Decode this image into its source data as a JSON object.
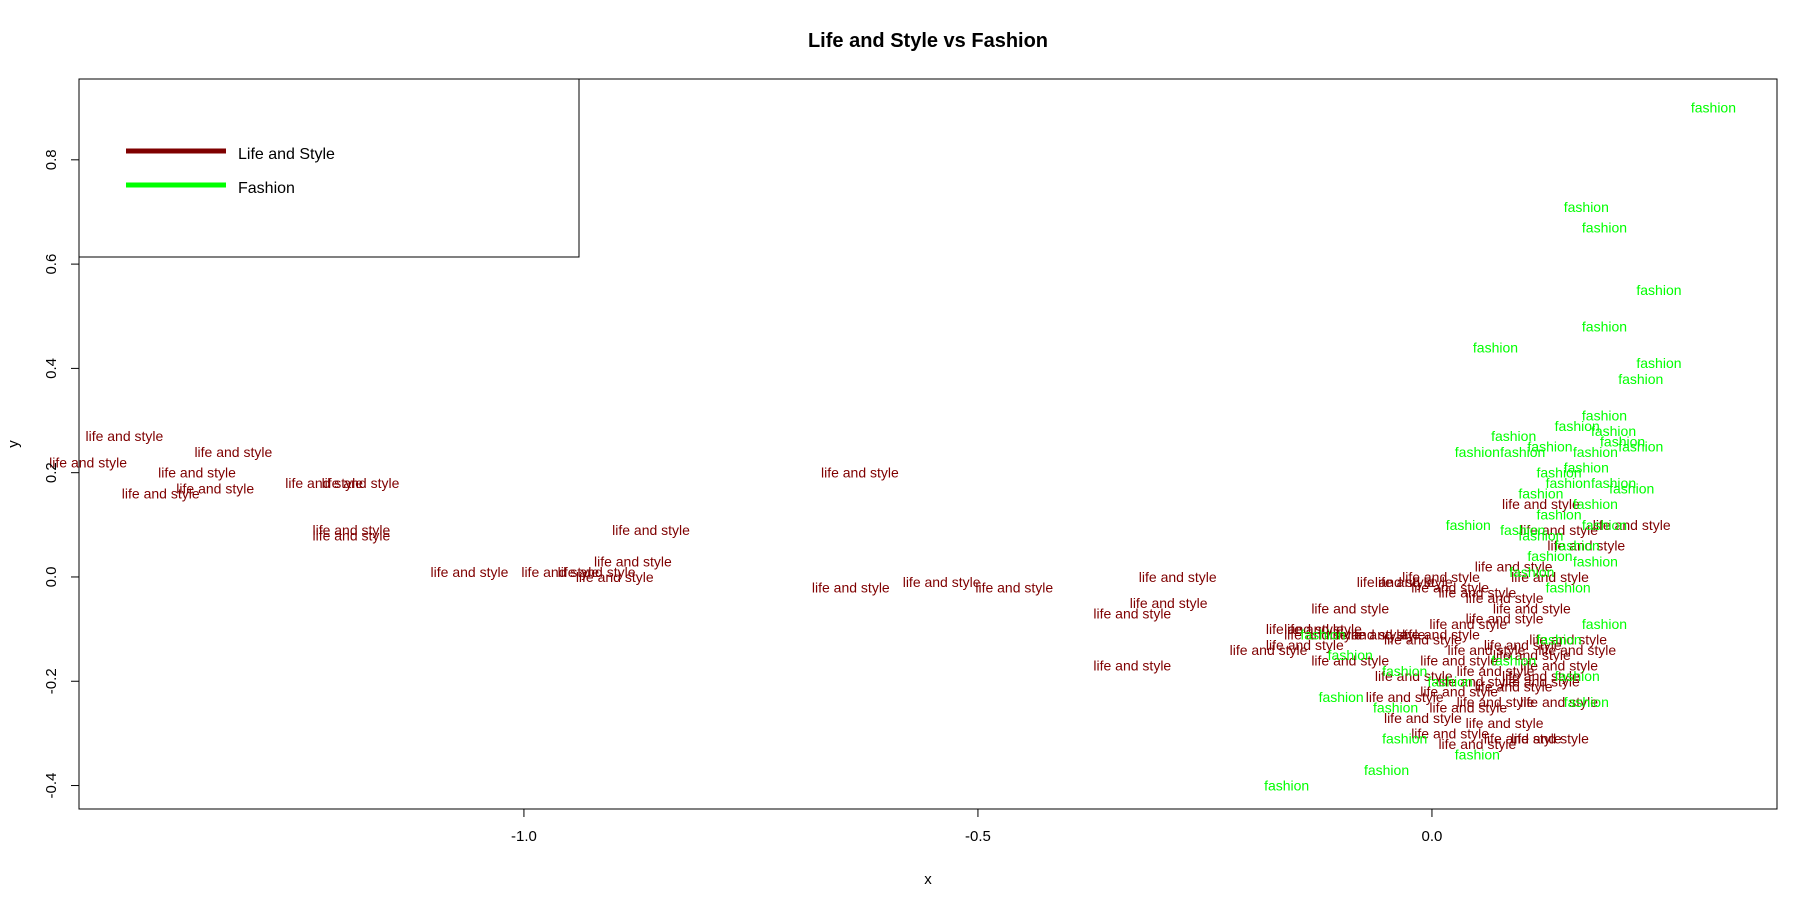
{
  "chart_data": {
    "type": "scatter",
    "title": "Life and Style vs Fashion",
    "xlabel": "x",
    "ylabel": "y",
    "xlim": [
      -1.49,
      0.38
    ],
    "ylim": [
      -0.445,
      0.955
    ],
    "xticks": [
      "-1.0",
      "-0.5",
      "0.0"
    ],
    "xtick_values": [
      -1.0,
      -0.5,
      0.0
    ],
    "yticks": [
      "-0.4",
      "-0.2",
      "0.0",
      "0.2",
      "0.4",
      "0.6",
      "0.8"
    ],
    "ytick_values": [
      -0.4,
      -0.2,
      0.0,
      0.2,
      0.4,
      0.6,
      0.8
    ],
    "grid": false,
    "legend_position": "top-left",
    "legend": [
      {
        "name": "Life and Style",
        "color": "#7f0000"
      },
      {
        "name": "Fashion",
        "color": "#00ff00"
      }
    ],
    "series": [
      {
        "name": "Life and Style",
        "point_label": "life and style",
        "color": "#7f0000",
        "points": [
          [
            -1.44,
            0.27
          ],
          [
            -1.48,
            0.22
          ],
          [
            -1.32,
            0.24
          ],
          [
            -1.36,
            0.2
          ],
          [
            -1.34,
            0.17
          ],
          [
            -1.4,
            0.16
          ],
          [
            -1.22,
            0.18
          ],
          [
            -1.18,
            0.18
          ],
          [
            -1.19,
            0.09
          ],
          [
            -1.19,
            0.08
          ],
          [
            -1.06,
            0.01
          ],
          [
            -0.96,
            0.01
          ],
          [
            -0.92,
            0.01
          ],
          [
            -0.9,
            0.0
          ],
          [
            -0.88,
            0.03
          ],
          [
            -0.86,
            0.09
          ],
          [
            -0.63,
            0.2
          ],
          [
            -0.64,
            -0.02
          ],
          [
            -0.54,
            -0.01
          ],
          [
            -0.46,
            -0.02
          ],
          [
            -0.28,
            0.0
          ],
          [
            -0.29,
            -0.05
          ],
          [
            -0.33,
            -0.07
          ],
          [
            -0.33,
            -0.17
          ],
          [
            -0.18,
            -0.14
          ],
          [
            -0.14,
            -0.13
          ],
          [
            -0.12,
            -0.11
          ],
          [
            -0.09,
            -0.06
          ],
          [
            -0.12,
            -0.1
          ],
          [
            -0.09,
            -0.16
          ],
          [
            -0.14,
            -0.1
          ],
          [
            -0.02,
            -0.01
          ],
          [
            -0.04,
            -0.01
          ],
          [
            0.01,
            0.0
          ],
          [
            0.02,
            -0.02
          ],
          [
            0.05,
            -0.03
          ],
          [
            0.08,
            -0.04
          ],
          [
            0.12,
            0.14
          ],
          [
            0.14,
            0.09
          ],
          [
            0.22,
            0.1
          ],
          [
            0.17,
            0.06
          ],
          [
            0.13,
            0.0
          ],
          [
            0.09,
            0.02
          ],
          [
            0.11,
            -0.06
          ],
          [
            -0.05,
            -0.11
          ],
          [
            -0.02,
            -0.19
          ],
          [
            -0.03,
            -0.23
          ],
          [
            -0.01,
            -0.27
          ],
          [
            0.02,
            -0.3
          ],
          [
            0.05,
            -0.32
          ],
          [
            0.1,
            -0.31
          ],
          [
            0.13,
            -0.31
          ],
          [
            0.08,
            -0.28
          ],
          [
            0.04,
            -0.25
          ],
          [
            0.07,
            -0.24
          ],
          [
            0.09,
            -0.21
          ],
          [
            0.12,
            -0.2
          ],
          [
            0.14,
            -0.17
          ],
          [
            0.03,
            -0.16
          ],
          [
            0.06,
            -0.14
          ],
          [
            0.1,
            -0.13
          ],
          [
            0.15,
            -0.12
          ],
          [
            0.11,
            -0.15
          ],
          [
            0.01,
            -0.11
          ],
          [
            -0.01,
            -0.12
          ],
          [
            0.04,
            -0.09
          ],
          [
            0.08,
            -0.08
          ],
          [
            0.12,
            -0.19
          ],
          [
            0.07,
            -0.18
          ],
          [
            0.14,
            -0.24
          ],
          [
            0.05,
            -0.2
          ],
          [
            0.16,
            -0.14
          ],
          [
            -0.07,
            -0.11
          ],
          [
            0.03,
            -0.22
          ]
        ]
      },
      {
        "name": "Fashion",
        "point_label": "fashion",
        "color": "#00ff00",
        "points": [
          [
            0.31,
            0.9
          ],
          [
            0.17,
            0.71
          ],
          [
            0.19,
            0.67
          ],
          [
            0.25,
            0.55
          ],
          [
            0.19,
            0.48
          ],
          [
            0.07,
            0.44
          ],
          [
            0.25,
            0.41
          ],
          [
            0.23,
            0.38
          ],
          [
            0.09,
            0.27
          ],
          [
            0.05,
            0.24
          ],
          [
            0.1,
            0.24
          ],
          [
            0.13,
            0.25
          ],
          [
            0.16,
            0.29
          ],
          [
            0.19,
            0.31
          ],
          [
            0.2,
            0.28
          ],
          [
            0.21,
            0.26
          ],
          [
            0.18,
            0.24
          ],
          [
            0.23,
            0.25
          ],
          [
            0.14,
            0.2
          ],
          [
            0.17,
            0.21
          ],
          [
            0.2,
            0.18
          ],
          [
            0.15,
            0.18
          ],
          [
            0.12,
            0.16
          ],
          [
            0.18,
            0.14
          ],
          [
            0.14,
            0.12
          ],
          [
            0.22,
            0.17
          ],
          [
            0.19,
            0.1
          ],
          [
            0.04,
            0.1
          ],
          [
            0.1,
            0.09
          ],
          [
            0.12,
            0.08
          ],
          [
            0.16,
            0.06
          ],
          [
            0.13,
            0.04
          ],
          [
            0.18,
            0.03
          ],
          [
            0.11,
            0.01
          ],
          [
            0.15,
            -0.02
          ],
          [
            0.19,
            -0.09
          ],
          [
            0.14,
            -0.12
          ],
          [
            0.16,
            -0.19
          ],
          [
            0.17,
            -0.24
          ],
          [
            -0.1,
            -0.23
          ],
          [
            -0.04,
            -0.25
          ],
          [
            -0.09,
            -0.15
          ],
          [
            -0.03,
            -0.18
          ],
          [
            0.02,
            -0.2
          ],
          [
            -0.03,
            -0.31
          ],
          [
            -0.05,
            -0.37
          ],
          [
            -0.16,
            -0.4
          ],
          [
            0.05,
            -0.34
          ],
          [
            -0.12,
            -0.11
          ],
          [
            0.09,
            -0.16
          ]
        ]
      }
    ]
  }
}
